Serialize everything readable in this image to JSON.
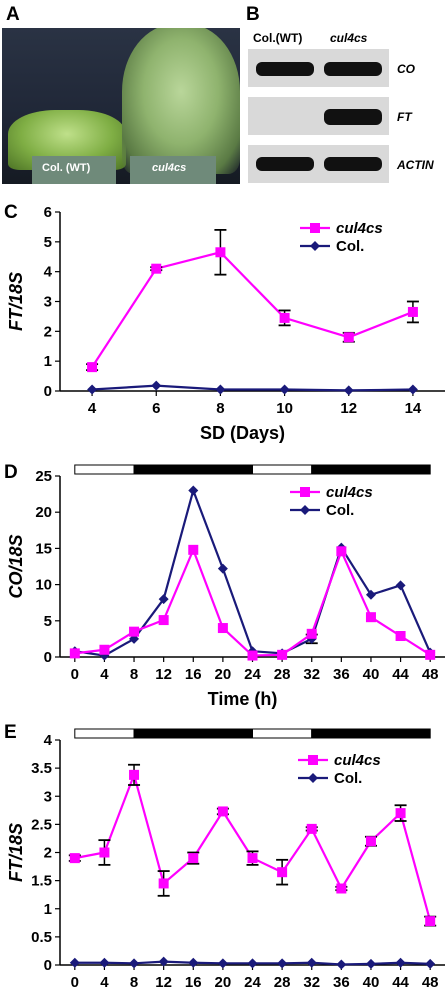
{
  "panels": {
    "a": {
      "letter": "A",
      "labels": [
        "Col. (WT)",
        "cul4cs"
      ]
    },
    "b": {
      "letter": "B",
      "columns": [
        "Col.(WT)",
        "cul4cs"
      ],
      "genes": [
        "CO",
        "FT",
        "ACTIN"
      ]
    }
  },
  "chart_data": [
    {
      "panel": "C",
      "type": "line",
      "xlabel": "SD (Days)",
      "ylabel": "FT/18S",
      "x": [
        4,
        6,
        8,
        10,
        12,
        14
      ],
      "xlim": [
        3,
        15
      ],
      "ylim": [
        0,
        6
      ],
      "yticks": [
        0,
        1,
        2,
        3,
        4,
        5,
        6
      ],
      "legend": "top-right",
      "series": [
        {
          "name": "cul4cs",
          "color": "#ff00ff",
          "marker": "square",
          "values": [
            0.8,
            4.1,
            4.65,
            2.45,
            1.8,
            2.65
          ],
          "errors": [
            0.1,
            0.05,
            0.75,
            0.25,
            0.15,
            0.35
          ]
        },
        {
          "name": "Col.",
          "color": "#1a1a7a",
          "marker": "diamond",
          "values": [
            0.05,
            0.18,
            0.05,
            0.05,
            0.02,
            0.05
          ],
          "errors": [
            0,
            0,
            0,
            0,
            0,
            0
          ]
        }
      ]
    },
    {
      "panel": "D",
      "type": "line",
      "xlabel": "Time (h)",
      "ylabel": "CO/18S",
      "x": [
        0,
        4,
        8,
        12,
        16,
        20,
        24,
        28,
        32,
        36,
        40,
        44,
        48
      ],
      "xlim": [
        -2,
        50
      ],
      "ylim": [
        0,
        25
      ],
      "yticks": [
        0,
        5,
        10,
        15,
        20,
        25
      ],
      "light_bar": [
        [
          0,
          8,
          "light"
        ],
        [
          8,
          24,
          "dark"
        ],
        [
          24,
          32,
          "light"
        ],
        [
          32,
          48,
          "dark"
        ]
      ],
      "legend": "top-right",
      "series": [
        {
          "name": "cul4cs",
          "color": "#ff00ff",
          "marker": "square",
          "values": [
            0.5,
            1.0,
            3.5,
            5.1,
            14.8,
            4.0,
            0.2,
            0.3,
            3.2,
            14.6,
            5.5,
            2.9,
            0.3
          ],
          "errors": [
            0,
            0,
            0,
            0,
            0,
            0,
            0,
            0,
            0,
            0,
            0,
            0,
            0
          ]
        },
        {
          "name": "Col.",
          "color": "#1a1a7a",
          "marker": "diamond",
          "values": [
            0.8,
            0.2,
            2.5,
            8.0,
            23.0,
            12.2,
            0.8,
            0.5,
            2.5,
            15.1,
            8.6,
            9.9,
            0.6
          ],
          "errors": [
            0,
            0,
            0,
            0,
            0,
            0,
            0,
            0,
            0.6,
            0,
            0,
            0,
            0
          ]
        }
      ]
    },
    {
      "panel": "E",
      "type": "line",
      "xlabel": "Time (h)",
      "ylabel": "FT/18S",
      "x": [
        0,
        4,
        8,
        12,
        16,
        20,
        24,
        28,
        32,
        36,
        40,
        44,
        48
      ],
      "xlim": [
        -2,
        50
      ],
      "ylim": [
        0,
        4
      ],
      "yticks": [
        0,
        0.5,
        1,
        1.5,
        2,
        2.5,
        3,
        3.5,
        4
      ],
      "light_bar": [
        [
          0,
          8,
          "light"
        ],
        [
          8,
          24,
          "dark"
        ],
        [
          24,
          32,
          "light"
        ],
        [
          32,
          48,
          "dark"
        ]
      ],
      "legend": "top-right",
      "series": [
        {
          "name": "cul4cs",
          "color": "#ff00ff",
          "marker": "square",
          "values": [
            1.9,
            2.0,
            3.38,
            1.45,
            1.9,
            2.73,
            1.9,
            1.65,
            2.42,
            1.36,
            2.2,
            2.7,
            0.78
          ],
          "errors": [
            0.05,
            0.22,
            0.18,
            0.22,
            0.1,
            0.05,
            0.12,
            0.22,
            0.03,
            0.03,
            0.08,
            0.14,
            0.08
          ]
        },
        {
          "name": "Col.",
          "color": "#1a1a7a",
          "marker": "diamond",
          "values": [
            0.04,
            0.04,
            0.03,
            0.06,
            0.04,
            0.03,
            0.03,
            0.03,
            0.04,
            0.01,
            0.02,
            0.04,
            0.02
          ],
          "errors": [
            0,
            0,
            0,
            0,
            0,
            0,
            0,
            0,
            0,
            0,
            0,
            0,
            0
          ]
        }
      ]
    }
  ]
}
